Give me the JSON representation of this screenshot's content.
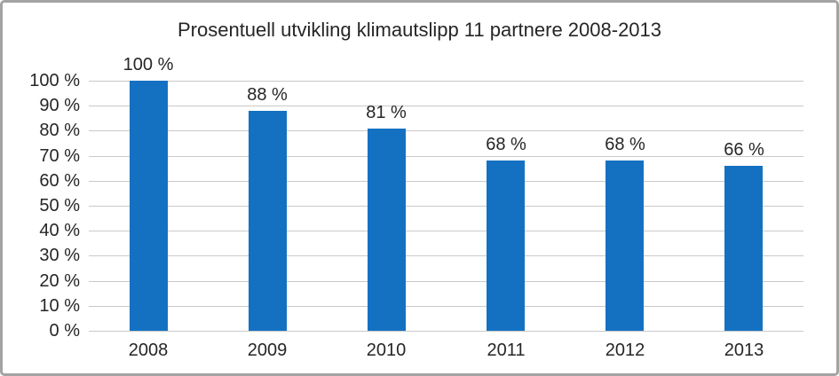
{
  "chart_data": {
    "type": "bar",
    "title": "Prosentuell utvikling klimautslipp 11 partnere 2008-2013",
    "categories": [
      "2008",
      "2009",
      "2010",
      "2011",
      "2012",
      "2013"
    ],
    "values": [
      100,
      88,
      81,
      68,
      68,
      66
    ],
    "data_labels": [
      "100 %",
      "88 %",
      "81 %",
      "68 %",
      "68 %",
      "66 %"
    ],
    "xlabel": "",
    "ylabel": "",
    "ylim": [
      0,
      100
    ],
    "y_tick_step": 10,
    "y_tick_labels": [
      "0 %",
      "10 %",
      "20 %",
      "30 %",
      "40 %",
      "50 %",
      "60 %",
      "70 %",
      "80 %",
      "90 %",
      "100 %"
    ],
    "grid": true,
    "legend": false,
    "bar_color": "#1471c2",
    "gridline_color": "#c9c9c9",
    "axis_line_color": "#c9c9c9",
    "text_color": "#262626",
    "background_color": "#ffffff",
    "border_color": "#a3a3a3"
  }
}
